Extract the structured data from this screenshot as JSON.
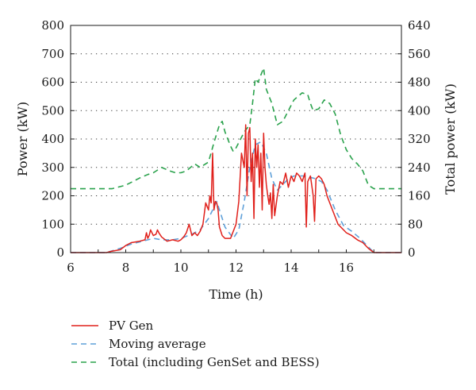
{
  "chart_data": {
    "type": "line",
    "xlabel": "Time (h)",
    "ylabel": "Power (kW)",
    "y2label": "Total power (kW)",
    "xlim": [
      6,
      18
    ],
    "ylim": [
      0,
      800
    ],
    "y2lim": [
      0,
      640
    ],
    "x_ticks": [
      6,
      8,
      10,
      12,
      14,
      16
    ],
    "y_ticks": [
      0,
      100,
      200,
      300,
      400,
      500,
      600,
      700,
      800
    ],
    "y2_ticks": [
      0,
      80,
      160,
      240,
      320,
      400,
      480,
      560,
      640
    ],
    "grid": "horizontal dotted",
    "legend_position": "below",
    "series": [
      {
        "name": "PV Gen",
        "color": "#e0201b",
        "dash": "solid",
        "axis": "left",
        "x": [
          6,
          7.3,
          7.5,
          7.8,
          8,
          8.2,
          8.5,
          8.7,
          8.75,
          8.8,
          8.85,
          8.9,
          9,
          9.1,
          9.15,
          9.2,
          9.3,
          9.5,
          9.7,
          9.9,
          10,
          10.1,
          10.2,
          10.3,
          10.4,
          10.5,
          10.6,
          10.7,
          10.8,
          10.9,
          11,
          11.05,
          11.1,
          11.15,
          11.2,
          11.25,
          11.3,
          11.35,
          11.4,
          11.5,
          11.6,
          11.8,
          12,
          12.1,
          12.2,
          12.3,
          12.35,
          12.4,
          12.45,
          12.5,
          12.55,
          12.6,
          12.65,
          12.7,
          12.75,
          12.8,
          12.85,
          12.9,
          12.95,
          13,
          13.05,
          13.1,
          13.15,
          13.2,
          13.25,
          13.3,
          13.35,
          13.4,
          13.5,
          13.6,
          13.7,
          13.8,
          13.9,
          14,
          14.1,
          14.2,
          14.3,
          14.4,
          14.5,
          14.55,
          14.6,
          14.7,
          14.8,
          14.85,
          14.9,
          15,
          15.1,
          15.2,
          15.3,
          15.5,
          15.7,
          15.9,
          16,
          16.2,
          16.4,
          16.6,
          16.8,
          17,
          18
        ],
        "values": [
          0,
          0,
          5,
          10,
          25,
          35,
          40,
          45,
          70,
          50,
          60,
          80,
          60,
          65,
          80,
          70,
          55,
          40,
          45,
          40,
          45,
          55,
          70,
          100,
          60,
          70,
          60,
          75,
          100,
          175,
          150,
          200,
          175,
          350,
          150,
          180,
          175,
          150,
          90,
          60,
          50,
          50,
          100,
          180,
          350,
          300,
          450,
          200,
          420,
          440,
          250,
          350,
          120,
          400,
          300,
          380,
          230,
          350,
          150,
          420,
          300,
          240,
          200,
          170,
          210,
          120,
          240,
          130,
          200,
          250,
          240,
          280,
          230,
          270,
          250,
          280,
          270,
          250,
          280,
          90,
          250,
          270,
          200,
          110,
          260,
          270,
          260,
          240,
          200,
          150,
          100,
          80,
          70,
          60,
          45,
          35,
          15,
          0,
          0
        ]
      },
      {
        "name": "Moving average",
        "color": "#5fa0d9",
        "dash": "dashed",
        "axis": "left",
        "x": [
          6,
          7.3,
          7.8,
          8.2,
          8.6,
          9,
          9.3,
          9.7,
          10,
          10.4,
          10.7,
          11,
          11.3,
          11.6,
          11.9,
          12.1,
          12.3,
          12.5,
          12.7,
          12.9,
          13.1,
          13.3,
          13.5,
          13.7,
          13.9,
          14.1,
          14.3,
          14.5,
          14.7,
          14.9,
          15.1,
          15.3,
          15.6,
          15.9,
          16.2,
          16.5,
          16.8,
          17,
          18
        ],
        "values": [
          0,
          0,
          15,
          30,
          40,
          50,
          45,
          45,
          50,
          65,
          80,
          120,
          180,
          90,
          50,
          80,
          180,
          300,
          380,
          390,
          350,
          260,
          220,
          240,
          260,
          270,
          270,
          270,
          265,
          260,
          250,
          220,
          150,
          95,
          75,
          50,
          20,
          0,
          0
        ]
      },
      {
        "name": "Total (including GenSet and BESS)",
        "color": "#2aa24c",
        "dash": "dashed",
        "axis": "right",
        "x": [
          6,
          7.5,
          8,
          8.5,
          8.8,
          9,
          9.3,
          9.6,
          9.8,
          10,
          10.2,
          10.5,
          10.7,
          11,
          11.2,
          11.4,
          11.5,
          11.6,
          11.8,
          11.9,
          12,
          12.1,
          12.3,
          12.5,
          12.6,
          12.7,
          12.8,
          12.9,
          13,
          13.1,
          13.3,
          13.5,
          13.7,
          13.9,
          14.1,
          14.4,
          14.6,
          14.7,
          14.8,
          15,
          15.2,
          15.4,
          15.6,
          15.8,
          16,
          16.2,
          16.4,
          16.6,
          16.8,
          17,
          18
        ],
        "values": [
          180,
          180,
          190,
          210,
          220,
          225,
          240,
          230,
          225,
          225,
          230,
          250,
          240,
          255,
          310,
          360,
          370,
          340,
          300,
          285,
          295,
          310,
          340,
          360,
          420,
          490,
          480,
          500,
          520,
          460,
          420,
          360,
          370,
          400,
          430,
          450,
          445,
          420,
          400,
          405,
          430,
          420,
          390,
          330,
          290,
          265,
          250,
          230,
          190,
          180,
          180
        ]
      }
    ]
  }
}
